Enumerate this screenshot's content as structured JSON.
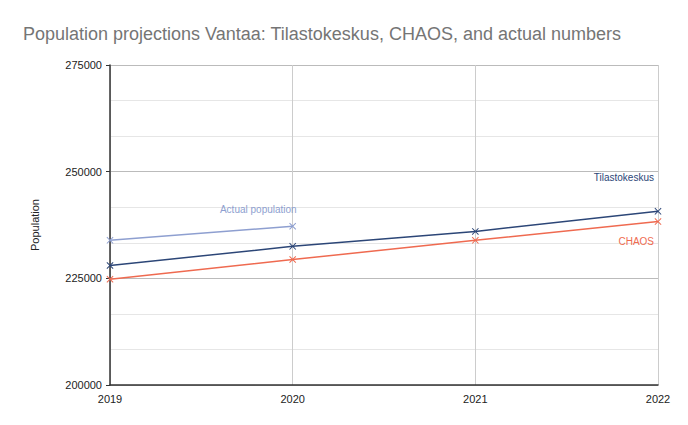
{
  "chart_data": {
    "type": "line",
    "title": "Population projections Vantaa: Tilastokeskus, CHAOS, and actual numbers",
    "y_label": "Population",
    "categories": [
      "2019",
      "2020",
      "2021",
      "2022"
    ],
    "series": [
      {
        "name": "Actual population",
        "color": "#8e9fd0",
        "values": [
          233900,
          237200,
          null,
          null
        ]
      },
      {
        "name": "Tilastokeskus",
        "color": "#2c4677",
        "values": [
          228000,
          232500,
          236000,
          240700
        ]
      },
      {
        "name": "CHAOS",
        "color": "#ef6a50",
        "values": [
          224800,
          229400,
          233900,
          238300
        ]
      }
    ],
    "ylim": [
      200000,
      275000
    ],
    "yticks": [
      200000,
      225000,
      250000,
      275000
    ],
    "grid": true,
    "marker": "x"
  }
}
